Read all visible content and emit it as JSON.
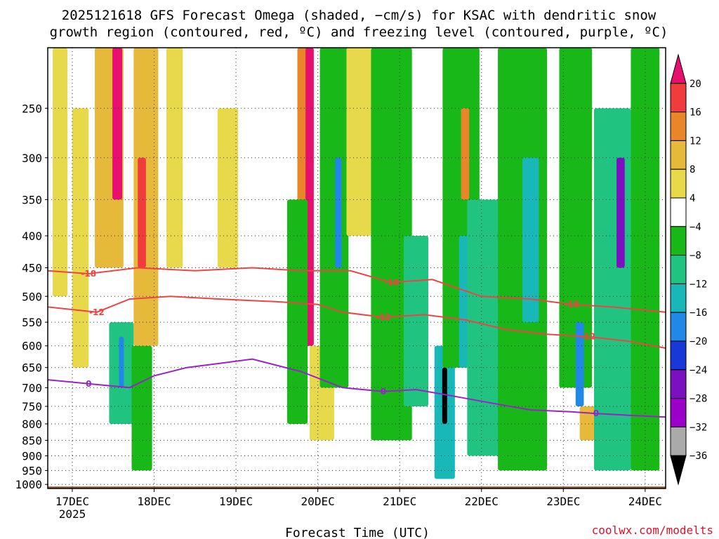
{
  "title_lines": [
    "2025121618 GFS Forecast Omega (shaded, −cm/s) for KSAC with dendritic snow",
    "growth region (contoured, red, ºC) and freezing level (contoured, purple, ºC)"
  ],
  "credit": "coolwx.com/modelts",
  "chart_data": {
    "type": "heatmap",
    "title": "2025121618 GFS Forecast Omega (shaded, −cm/s) for KSAC with dendritic snow growth region (contoured, red, ºC) and freezing level (contoured, purple, ºC)",
    "xlabel": "Forecast Time (UTC)",
    "ylabel": "",
    "x_range": [
      16.7,
      24.25
    ],
    "y_range_hpa": [
      1015,
      200
    ],
    "y_ticks": [
      250,
      300,
      350,
      400,
      450,
      500,
      550,
      600,
      650,
      700,
      750,
      800,
      850,
      900,
      950,
      1000
    ],
    "x_ticks": [
      {
        "day": 17,
        "label": "17DEC",
        "sub": "2025"
      },
      {
        "day": 18,
        "label": "18DEC",
        "sub": ""
      },
      {
        "day": 19,
        "label": "19DEC",
        "sub": ""
      },
      {
        "day": 20,
        "label": "20DEC",
        "sub": ""
      },
      {
        "day": 21,
        "label": "21DEC",
        "sub": ""
      },
      {
        "day": 22,
        "label": "22DEC",
        "sub": ""
      },
      {
        "day": 23,
        "label": "23DEC",
        "sub": ""
      },
      {
        "day": 24,
        "label": "24DEC",
        "sub": ""
      }
    ],
    "colorbar": {
      "labels": [
        "20",
        "16",
        "12",
        "8",
        "4",
        "−4",
        "−8",
        "−12",
        "−16",
        "−20",
        "−24",
        "−28",
        "−32",
        "−36"
      ],
      "levels": [
        20,
        16,
        12,
        8,
        4,
        -4,
        -8,
        -12,
        -16,
        -20,
        -24,
        -28,
        -32,
        -36
      ],
      "colors": [
        "#e8106e",
        "#f03c3c",
        "#e9862a",
        "#e6b93a",
        "#e8d94a",
        "#ffffff",
        "#18b818",
        "#20c480",
        "#18b8b8",
        "#2288e8",
        "#1838d8",
        "#7a10c0",
        "#9a00c8",
        "#aaaaaa",
        "#000000"
      ]
    },
    "omega_regions": [
      {
        "x": 16.85,
        "p0": 200,
        "p1": 500,
        "w": 0.18,
        "v": 5
      },
      {
        "x": 17.1,
        "p0": 250,
        "p1": 650,
        "w": 0.2,
        "v": 6
      },
      {
        "x": 17.45,
        "p0": 200,
        "p1": 450,
        "w": 0.35,
        "v": 9
      },
      {
        "x": 17.55,
        "p0": 200,
        "p1": 350,
        "w": 0.12,
        "v": 20
      },
      {
        "x": 17.6,
        "p0": 550,
        "p1": 800,
        "w": 0.3,
        "v": -12
      },
      {
        "x": 17.6,
        "p0": 580,
        "p1": 700,
        "w": 0.06,
        "v": -18
      },
      {
        "x": 17.9,
        "p0": 200,
        "p1": 600,
        "w": 0.3,
        "v": 10
      },
      {
        "x": 17.85,
        "p0": 300,
        "p1": 450,
        "w": 0.1,
        "v": 16
      },
      {
        "x": 18.25,
        "p0": 200,
        "p1": 450,
        "w": 0.2,
        "v": 6
      },
      {
        "x": 17.85,
        "p0": 600,
        "p1": 950,
        "w": 0.25,
        "v": -6
      },
      {
        "x": 18.9,
        "p0": 250,
        "p1": 450,
        "w": 0.25,
        "v": 5
      },
      {
        "x": 19.85,
        "p0": 200,
        "p1": 600,
        "w": 0.2,
        "v": 14
      },
      {
        "x": 19.9,
        "p0": 200,
        "p1": 600,
        "w": 0.1,
        "v": 22
      },
      {
        "x": 20.05,
        "p0": 600,
        "p1": 850,
        "w": 0.3,
        "v": 5
      },
      {
        "x": 19.75,
        "p0": 350,
        "p1": 800,
        "w": 0.25,
        "v": -6
      },
      {
        "x": 20.2,
        "p0": 200,
        "p1": 700,
        "w": 0.35,
        "v": -8
      },
      {
        "x": 20.25,
        "p0": 300,
        "p1": 450,
        "w": 0.08,
        "v": -18
      },
      {
        "x": 20.5,
        "p0": 200,
        "p1": 400,
        "w": 0.3,
        "v": 5
      },
      {
        "x": 20.9,
        "p0": 200,
        "p1": 850,
        "w": 0.5,
        "v": -6
      },
      {
        "x": 21.2,
        "p0": 400,
        "p1": 750,
        "w": 0.3,
        "v": -10
      },
      {
        "x": 21.55,
        "p0": 600,
        "p1": 980,
        "w": 0.25,
        "v": -14
      },
      {
        "x": 21.55,
        "p0": 650,
        "p1": 800,
        "w": 0.06,
        "v": -40
      },
      {
        "x": 21.75,
        "p0": 200,
        "p1": 650,
        "w": 0.45,
        "v": -7
      },
      {
        "x": 21.8,
        "p0": 250,
        "p1": 350,
        "w": 0.1,
        "v": 14
      },
      {
        "x": 21.85,
        "p0": 400,
        "p1": 650,
        "w": 0.25,
        "v": -14
      },
      {
        "x": 22.1,
        "p0": 350,
        "p1": 900,
        "w": 0.55,
        "v": -10
      },
      {
        "x": 22.5,
        "p0": 200,
        "p1": 950,
        "w": 0.6,
        "v": -8
      },
      {
        "x": 22.6,
        "p0": 300,
        "p1": 550,
        "w": 0.2,
        "v": -14
      },
      {
        "x": 23.15,
        "p0": 200,
        "p1": 700,
        "w": 0.4,
        "v": -8
      },
      {
        "x": 23.2,
        "p0": 550,
        "p1": 750,
        "w": 0.1,
        "v": -18
      },
      {
        "x": 23.3,
        "p0": 750,
        "p1": 850,
        "w": 0.2,
        "v": 8
      },
      {
        "x": 23.6,
        "p0": 250,
        "p1": 950,
        "w": 0.45,
        "v": -10
      },
      {
        "x": 23.7,
        "p0": 300,
        "p1": 450,
        "w": 0.1,
        "v": -28
      },
      {
        "x": 24.0,
        "p0": 200,
        "p1": 950,
        "w": 0.35,
        "v": -7
      }
    ],
    "contours": [
      {
        "name": "-18",
        "color": "#ee4444",
        "label": "-18",
        "x": [
          16.7,
          17.2,
          17.8,
          18.5,
          19.2,
          19.8,
          20.4,
          20.9,
          21.4,
          22.0,
          22.6,
          23.1,
          23.6,
          24.25
        ],
        "p": [
          455,
          460,
          450,
          455,
          450,
          455,
          455,
          475,
          470,
          500,
          505,
          515,
          520,
          530
        ]
      },
      {
        "name": "-12",
        "color": "#ee4444",
        "label": "-12",
        "x": [
          16.7,
          17.3,
          17.7,
          18.2,
          18.8,
          19.5,
          20.0,
          20.3,
          20.8,
          21.3,
          21.8,
          22.3,
          22.8,
          23.3,
          23.8,
          24.25
        ],
        "p": [
          520,
          530,
          505,
          500,
          505,
          510,
          515,
          530,
          540,
          535,
          545,
          565,
          575,
          580,
          590,
          605
        ]
      },
      {
        "name": "0",
        "color": "#9a22c8",
        "label": "0",
        "x": [
          16.7,
          17.2,
          17.7,
          18.0,
          18.4,
          18.8,
          19.2,
          19.8,
          20.3,
          20.8,
          21.2,
          21.6,
          22.1,
          22.6,
          23.1,
          23.4,
          23.8,
          24.25
        ],
        "p": [
          680,
          690,
          700,
          670,
          650,
          640,
          630,
          660,
          700,
          710,
          705,
          720,
          740,
          760,
          765,
          770,
          775,
          780
        ]
      }
    ]
  }
}
